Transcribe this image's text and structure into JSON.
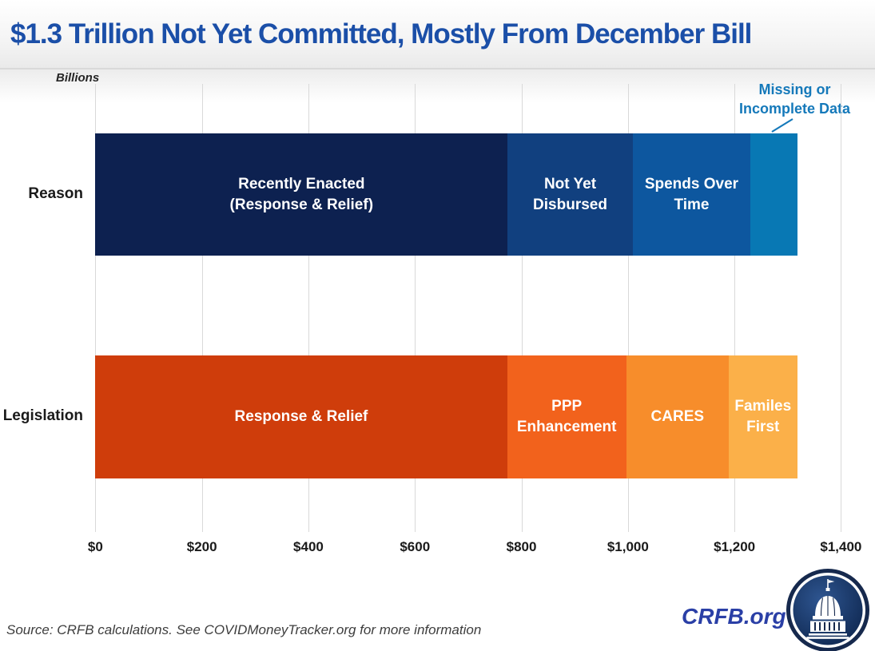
{
  "title": "$1.3 Trillion Not Yet Committed, Mostly From December Bill",
  "axis_note": "Billions",
  "annotation": {
    "lines": [
      "Missing or",
      "Incomplete Data"
    ],
    "color": "#1579ba"
  },
  "chart_data": {
    "type": "bar",
    "orientation": "horizontal",
    "units": "billions of dollars",
    "title": "$1.3 Trillion Not Yet Committed, Mostly From December Bill",
    "x_axis": {
      "label": "Billions",
      "ticks": [
        "$0",
        "$200",
        "$400",
        "$600",
        "$800",
        "$1,000",
        "$1,200",
        "$1,400"
      ],
      "values": [
        0,
        200,
        400,
        600,
        800,
        1000,
        1200,
        1400
      ],
      "max": 1400,
      "grid": true
    },
    "rows": [
      {
        "label": "Reason",
        "segments": [
          {
            "name": "Recently Enacted (Response & Relief)",
            "lines": [
              "Recently Enacted",
              "(Response & Relief)"
            ],
            "value": 774,
            "color": "#0d2150"
          },
          {
            "name": "Not Yet Disbursed",
            "lines": [
              "Not Yet",
              "Disbursed"
            ],
            "value": 235,
            "color": "#11407f"
          },
          {
            "name": "Spends Over Time",
            "lines": [
              "Spends Over",
              "Time"
            ],
            "value": 221,
            "color": "#0d579f"
          },
          {
            "name": "Missing or Incomplete Data",
            "lines": [],
            "value": 88,
            "color": "#0878b4"
          }
        ]
      },
      {
        "label": "Legislation",
        "segments": [
          {
            "name": "Response & Relief",
            "lines": [
              "Response & Relief"
            ],
            "value": 773,
            "color": "#cf3d0b"
          },
          {
            "name": "PPP Enhancement",
            "lines": [
              "PPP",
              "Enhancement"
            ],
            "value": 224,
            "color": "#f2621c"
          },
          {
            "name": "CARES",
            "lines": [
              "CARES"
            ],
            "value": 192,
            "color": "#f78d2b"
          },
          {
            "name": "Familes First",
            "lines": [
              "Familes",
              "First"
            ],
            "value": 129,
            "color": "#fbb049"
          }
        ]
      }
    ],
    "total_billions": 1318,
    "legend_position": "none"
  },
  "footer": {
    "source": "Source: CRFB calculations. See COVIDMoneyTracker.org for more information",
    "brand": "CRFB.org"
  },
  "colors": {
    "title": "#1b4fa8",
    "brand": "#2a3fa6",
    "gridline": "#d9d9d9",
    "axis_text": "#1a1a1a"
  }
}
